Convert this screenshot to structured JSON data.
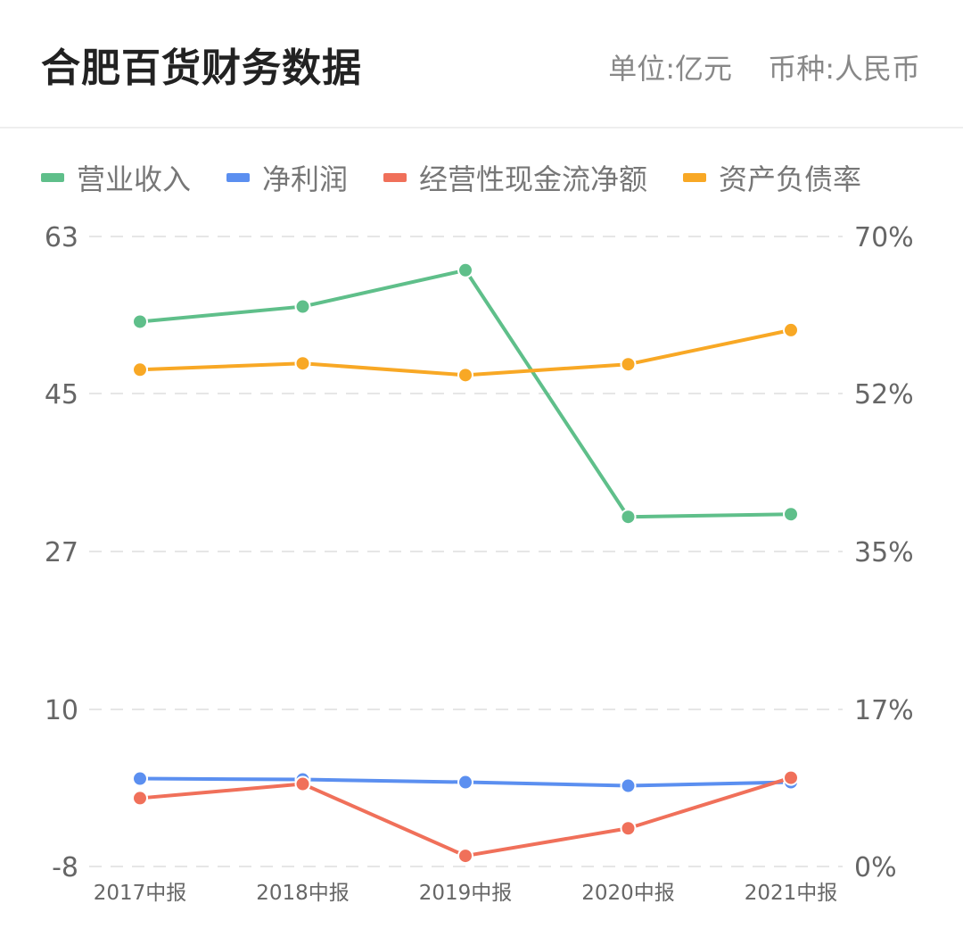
{
  "header": {
    "title": "合肥百货财务数据",
    "unit": "单位:亿元",
    "currency": "币种:人民币"
  },
  "chart_data": {
    "type": "line",
    "categories": [
      "2017中报",
      "2018中报",
      "2019中报",
      "2020中报",
      "2021中报"
    ],
    "left_axis": {
      "ticks": [
        "63",
        "45",
        "27",
        "10",
        "-8"
      ],
      "range": [
        -8,
        63
      ]
    },
    "right_axis": {
      "ticks": [
        "70%",
        "52%",
        "35%",
        "17%",
        "0%"
      ],
      "range": [
        0,
        70
      ]
    },
    "grid": "dashed-horizontal",
    "legend_position": "top-left",
    "series": [
      {
        "name": "营业收入",
        "axis": "left",
        "color": "#5fbf8a",
        "values": [
          53.4,
          55.1,
          59.2,
          31.4,
          31.7
        ]
      },
      {
        "name": "净利润",
        "axis": "left",
        "color": "#5b8ff0",
        "values": [
          1.9,
          1.8,
          1.5,
          1.1,
          1.5
        ]
      },
      {
        "name": "经营性现金流净额",
        "axis": "left",
        "color": "#f0705a",
        "values": [
          -0.3,
          1.3,
          -6.8,
          -3.7,
          2.0
        ]
      },
      {
        "name": "资产负债率",
        "axis": "right",
        "color": "#f8a825",
        "values": [
          55.2,
          55.9,
          54.6,
          55.8,
          59.6
        ]
      }
    ]
  }
}
